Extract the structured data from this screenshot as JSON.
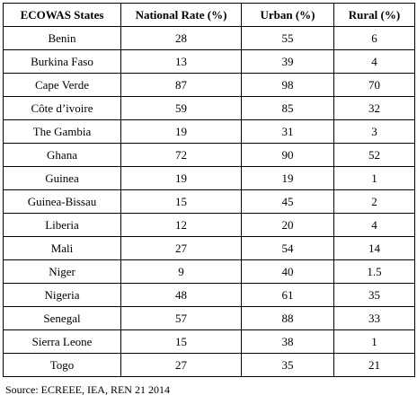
{
  "table": {
    "headers": [
      "ECOWAS States",
      "National Rate (%)",
      "Urban (%)",
      "Rural (%)"
    ],
    "rows": [
      [
        "Benin",
        "28",
        "55",
        "6"
      ],
      [
        "Burkina Faso",
        "13",
        "39",
        "4"
      ],
      [
        "Cape Verde",
        "87",
        "98",
        "70"
      ],
      [
        "Côte d’ivoire",
        "59",
        "85",
        "32"
      ],
      [
        "The Gambia",
        "19",
        "31",
        "3"
      ],
      [
        "Ghana",
        "72",
        "90",
        "52"
      ],
      [
        "Guinea",
        "19",
        "19",
        "1"
      ],
      [
        "Guinea-Bissau",
        "15",
        "45",
        "2"
      ],
      [
        "Liberia",
        "12",
        "20",
        "4"
      ],
      [
        "Mali",
        "27",
        "54",
        "14"
      ],
      [
        "Niger",
        "9",
        "40",
        "1.5"
      ],
      [
        "Nigeria",
        "48",
        "61",
        "35"
      ],
      [
        "Senegal",
        "57",
        "88",
        "33"
      ],
      [
        "Sierra Leone",
        "15",
        "38",
        "1"
      ],
      [
        "Togo",
        "27",
        "35",
        "21"
      ]
    ]
  },
  "source": "Source: ECREEE, IEA, REN 21 2014"
}
